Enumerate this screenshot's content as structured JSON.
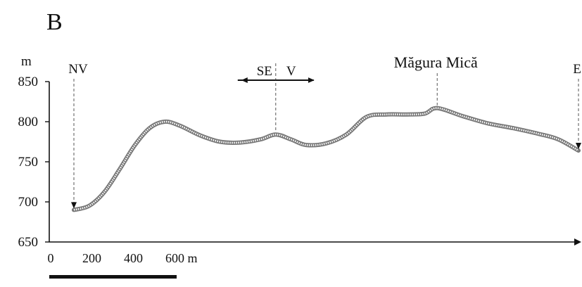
{
  "panel_label": "B",
  "chart_data": {
    "type": "line",
    "ylabel": "m",
    "ylim": [
      650,
      850
    ],
    "yticks": [
      650,
      700,
      750,
      800,
      850
    ],
    "series": [
      {
        "values": [
          [
            0,
            690
          ],
          [
            0.03,
            695
          ],
          [
            0.06,
            712
          ],
          [
            0.09,
            740
          ],
          [
            0.12,
            770
          ],
          [
            0.15,
            792
          ],
          [
            0.18,
            800
          ],
          [
            0.21,
            795
          ],
          [
            0.25,
            783
          ],
          [
            0.29,
            775
          ],
          [
            0.33,
            774
          ],
          [
            0.37,
            778
          ],
          [
            0.4,
            784
          ],
          [
            0.43,
            778
          ],
          [
            0.46,
            771
          ],
          [
            0.5,
            773
          ],
          [
            0.54,
            784
          ],
          [
            0.58,
            806
          ],
          [
            0.62,
            809
          ],
          [
            0.66,
            809
          ],
          [
            0.695,
            810
          ],
          [
            0.72,
            817
          ],
          [
            0.77,
            807
          ],
          [
            0.82,
            798
          ],
          [
            0.87,
            792
          ],
          [
            0.92,
            785
          ],
          [
            0.96,
            778
          ],
          [
            1.0,
            764
          ]
        ]
      }
    ],
    "markers": [
      {
        "label": "NV",
        "x": 0,
        "y": 690
      },
      {
        "label": "SE",
        "x": 0.4,
        "y": 784
      },
      {
        "label": "V",
        "x": 0.4,
        "y": 784
      },
      {
        "label": "Măgura Mică",
        "x": 0.72,
        "y": 817
      },
      {
        "label": "E",
        "x": 1.0,
        "y": 764
      }
    ],
    "scale_bar": {
      "ticks": [
        "0",
        "200",
        "400",
        "600 m"
      ]
    }
  }
}
